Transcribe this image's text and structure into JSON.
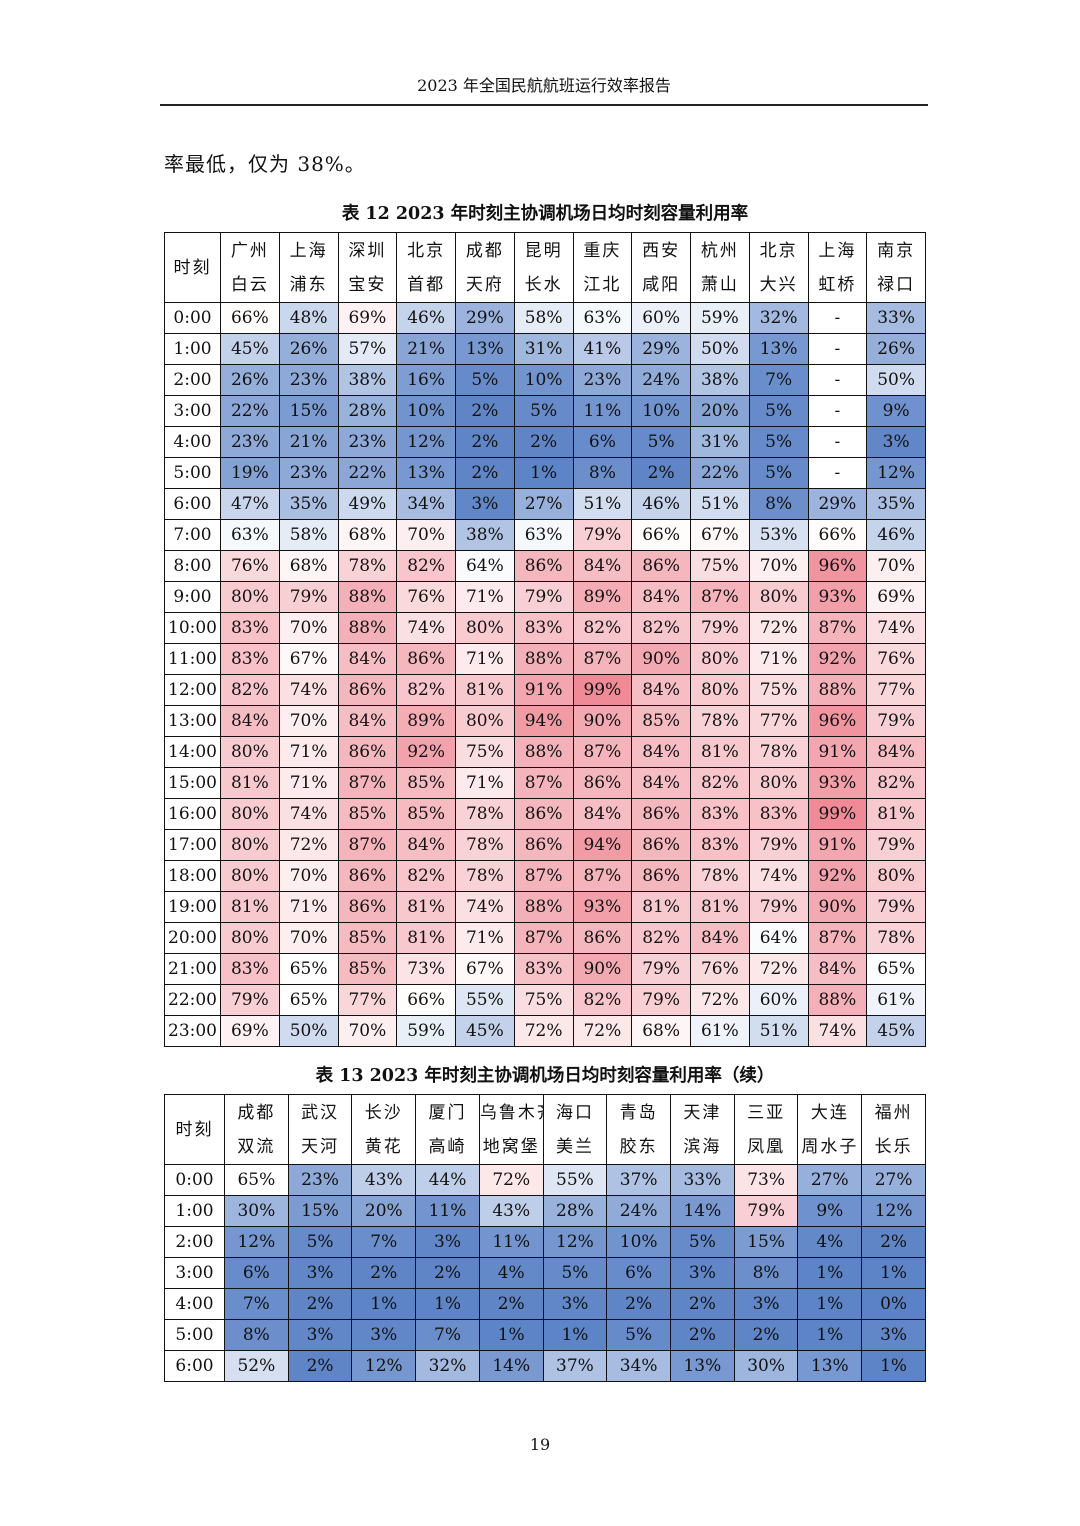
{
  "header": {
    "title": "2023 年全国民航航班运行效率报告"
  },
  "paragraph": {
    "text": "率最低，仅为 38%。"
  },
  "table1": {
    "caption": "表 12 2023 年时刻主协调机场日均时刻容量利用率",
    "corner": "时刻",
    "columns": [
      [
        "广州",
        "白云"
      ],
      [
        "上海",
        "浦东"
      ],
      [
        "深圳",
        "宝安"
      ],
      [
        "北京",
        "首都"
      ],
      [
        "成都",
        "天府"
      ],
      [
        "昆明",
        "长水"
      ],
      [
        "重庆",
        "江北"
      ],
      [
        "西安",
        "咸阳"
      ],
      [
        "杭州",
        "萧山"
      ],
      [
        "北京",
        "大兴"
      ],
      [
        "上海",
        "虹桥"
      ],
      [
        "南京",
        "禄口"
      ]
    ],
    "rows": [
      {
        "hour": "0:00",
        "values": [
          "66%",
          "48%",
          "69%",
          "46%",
          "29%",
          "58%",
          "63%",
          "60%",
          "59%",
          "32%",
          "-",
          "33%"
        ]
      },
      {
        "hour": "1:00",
        "values": [
          "45%",
          "26%",
          "57%",
          "21%",
          "13%",
          "31%",
          "41%",
          "29%",
          "50%",
          "13%",
          "-",
          "26%"
        ]
      },
      {
        "hour": "2:00",
        "values": [
          "26%",
          "23%",
          "38%",
          "16%",
          "5%",
          "10%",
          "23%",
          "24%",
          "38%",
          "7%",
          "-",
          "50%"
        ]
      },
      {
        "hour": "3:00",
        "values": [
          "22%",
          "15%",
          "28%",
          "10%",
          "2%",
          "5%",
          "11%",
          "10%",
          "20%",
          "5%",
          "-",
          "9%"
        ]
      },
      {
        "hour": "4:00",
        "values": [
          "23%",
          "21%",
          "23%",
          "12%",
          "2%",
          "2%",
          "6%",
          "5%",
          "31%",
          "5%",
          "-",
          "3%"
        ]
      },
      {
        "hour": "5:00",
        "values": [
          "19%",
          "23%",
          "22%",
          "13%",
          "2%",
          "1%",
          "8%",
          "2%",
          "22%",
          "5%",
          "-",
          "12%"
        ]
      },
      {
        "hour": "6:00",
        "values": [
          "47%",
          "35%",
          "49%",
          "34%",
          "3%",
          "27%",
          "51%",
          "46%",
          "51%",
          "8%",
          "29%",
          "35%"
        ]
      },
      {
        "hour": "7:00",
        "values": [
          "63%",
          "58%",
          "68%",
          "70%",
          "38%",
          "63%",
          "79%",
          "66%",
          "67%",
          "53%",
          "66%",
          "46%"
        ]
      },
      {
        "hour": "8:00",
        "values": [
          "76%",
          "68%",
          "78%",
          "82%",
          "64%",
          "86%",
          "84%",
          "86%",
          "75%",
          "70%",
          "96%",
          "70%"
        ]
      },
      {
        "hour": "9:00",
        "values": [
          "80%",
          "79%",
          "88%",
          "76%",
          "71%",
          "79%",
          "89%",
          "84%",
          "87%",
          "80%",
          "93%",
          "69%"
        ]
      },
      {
        "hour": "10:00",
        "values": [
          "83%",
          "70%",
          "88%",
          "74%",
          "80%",
          "83%",
          "82%",
          "82%",
          "79%",
          "72%",
          "87%",
          "74%"
        ]
      },
      {
        "hour": "11:00",
        "values": [
          "83%",
          "67%",
          "84%",
          "86%",
          "71%",
          "88%",
          "87%",
          "90%",
          "80%",
          "71%",
          "92%",
          "76%"
        ]
      },
      {
        "hour": "12:00",
        "values": [
          "82%",
          "74%",
          "86%",
          "82%",
          "81%",
          "91%",
          "99%",
          "84%",
          "80%",
          "75%",
          "88%",
          "77%"
        ]
      },
      {
        "hour": "13:00",
        "values": [
          "84%",
          "70%",
          "84%",
          "89%",
          "80%",
          "94%",
          "90%",
          "85%",
          "78%",
          "77%",
          "96%",
          "79%"
        ]
      },
      {
        "hour": "14:00",
        "values": [
          "80%",
          "71%",
          "86%",
          "92%",
          "75%",
          "88%",
          "87%",
          "84%",
          "81%",
          "78%",
          "91%",
          "84%"
        ]
      },
      {
        "hour": "15:00",
        "values": [
          "81%",
          "71%",
          "87%",
          "85%",
          "71%",
          "87%",
          "86%",
          "84%",
          "82%",
          "80%",
          "93%",
          "82%"
        ]
      },
      {
        "hour": "16:00",
        "values": [
          "80%",
          "74%",
          "85%",
          "85%",
          "78%",
          "86%",
          "84%",
          "86%",
          "83%",
          "83%",
          "99%",
          "81%"
        ]
      },
      {
        "hour": "17:00",
        "values": [
          "80%",
          "72%",
          "87%",
          "84%",
          "78%",
          "86%",
          "94%",
          "86%",
          "83%",
          "79%",
          "91%",
          "79%"
        ]
      },
      {
        "hour": "18:00",
        "values": [
          "80%",
          "70%",
          "86%",
          "82%",
          "78%",
          "87%",
          "87%",
          "86%",
          "78%",
          "74%",
          "92%",
          "80%"
        ]
      },
      {
        "hour": "19:00",
        "values": [
          "81%",
          "71%",
          "86%",
          "81%",
          "74%",
          "88%",
          "93%",
          "81%",
          "81%",
          "79%",
          "90%",
          "79%"
        ]
      },
      {
        "hour": "20:00",
        "values": [
          "80%",
          "70%",
          "85%",
          "81%",
          "71%",
          "87%",
          "86%",
          "82%",
          "84%",
          "64%",
          "87%",
          "78%"
        ]
      },
      {
        "hour": "21:00",
        "values": [
          "83%",
          "65%",
          "85%",
          "73%",
          "67%",
          "83%",
          "90%",
          "79%",
          "76%",
          "72%",
          "84%",
          "65%"
        ]
      },
      {
        "hour": "22:00",
        "values": [
          "79%",
          "65%",
          "77%",
          "66%",
          "55%",
          "75%",
          "82%",
          "79%",
          "72%",
          "60%",
          "88%",
          "61%"
        ]
      },
      {
        "hour": "23:00",
        "values": [
          "69%",
          "50%",
          "70%",
          "59%",
          "45%",
          "72%",
          "72%",
          "68%",
          "61%",
          "51%",
          "74%",
          "45%"
        ]
      }
    ]
  },
  "table2": {
    "caption": "表 13 2023 年时刻主协调机场日均时刻容量利用率（续）",
    "corner": "时刻",
    "columns": [
      [
        "成都",
        "双流"
      ],
      [
        "武汉",
        "天河"
      ],
      [
        "长沙",
        "黄花"
      ],
      [
        "厦门",
        "高崎"
      ],
      [
        "乌鲁木齐",
        "地窝堡"
      ],
      [
        "海口",
        "美兰"
      ],
      [
        "青岛",
        "胶东"
      ],
      [
        "天津",
        "滨海"
      ],
      [
        "三亚",
        "凤凰"
      ],
      [
        "大连",
        "周水子"
      ],
      [
        "福州",
        "长乐"
      ]
    ],
    "rows": [
      {
        "hour": "0:00",
        "values": [
          "65%",
          "23%",
          "43%",
          "44%",
          "72%",
          "55%",
          "37%",
          "33%",
          "73%",
          "27%",
          "27%"
        ]
      },
      {
        "hour": "1:00",
        "values": [
          "30%",
          "15%",
          "20%",
          "11%",
          "43%",
          "28%",
          "24%",
          "14%",
          "79%",
          "9%",
          "12%"
        ]
      },
      {
        "hour": "2:00",
        "values": [
          "12%",
          "5%",
          "7%",
          "3%",
          "11%",
          "12%",
          "10%",
          "5%",
          "15%",
          "4%",
          "2%"
        ]
      },
      {
        "hour": "3:00",
        "values": [
          "6%",
          "3%",
          "2%",
          "2%",
          "4%",
          "5%",
          "6%",
          "3%",
          "8%",
          "1%",
          "1%"
        ]
      },
      {
        "hour": "4:00",
        "values": [
          "7%",
          "2%",
          "1%",
          "1%",
          "2%",
          "3%",
          "2%",
          "2%",
          "3%",
          "1%",
          "0%"
        ]
      },
      {
        "hour": "5:00",
        "values": [
          "8%",
          "3%",
          "3%",
          "7%",
          "1%",
          "1%",
          "5%",
          "2%",
          "2%",
          "1%",
          "3%"
        ]
      },
      {
        "hour": "6:00",
        "values": [
          "52%",
          "2%",
          "12%",
          "32%",
          "14%",
          "37%",
          "34%",
          "13%",
          "30%",
          "13%",
          "1%"
        ]
      }
    ]
  },
  "footer": {
    "page_number": "19"
  },
  "colors": {
    "low": "#5b82c6",
    "mid": "#ffffff",
    "high": "#ef8a96"
  }
}
